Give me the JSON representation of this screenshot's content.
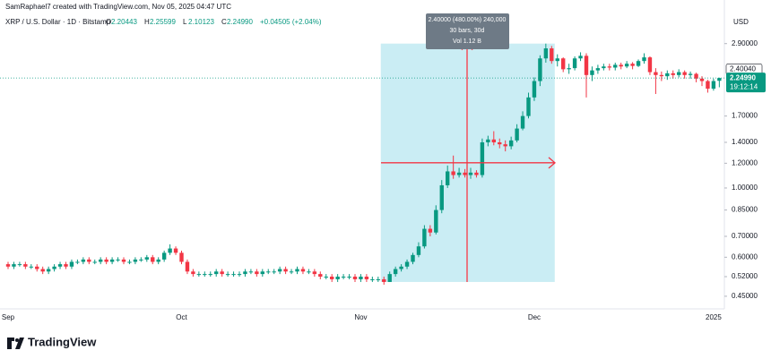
{
  "header": {
    "credit": "SamRaphael7 created with TradingView.com, Nov 05, 2025 04:47 UTC",
    "brand": "TradingView"
  },
  "chart_data": {
    "type": "candlestick",
    "title": "XRP / U.S. Dollar · 1D · Bitstamp",
    "ohlc_legend": [
      {
        "key": "O",
        "value": "2.20443"
      },
      {
        "key": "H",
        "value": "2.25599"
      },
      {
        "key": "L",
        "value": "2.10123"
      },
      {
        "key": "C",
        "value": "2.24990"
      }
    ],
    "change": "+0.04505 (+2.04%)",
    "currency": "USD",
    "up_color": "#089981",
    "down_color": "#f23645",
    "log_scale": true,
    "grid": false,
    "categories": [
      "Sep",
      null,
      null,
      null,
      null,
      null,
      null,
      null,
      null,
      null,
      null,
      null,
      null,
      null,
      null,
      null,
      null,
      null,
      null,
      null,
      null,
      null,
      null,
      null,
      null,
      null,
      null,
      null,
      null,
      null,
      "Oct",
      null,
      null,
      null,
      null,
      null,
      null,
      null,
      null,
      null,
      null,
      null,
      null,
      null,
      null,
      null,
      null,
      null,
      null,
      null,
      null,
      null,
      null,
      null,
      null,
      null,
      null,
      null,
      null,
      null,
      null,
      "Nov",
      null,
      null,
      null,
      null,
      null,
      null,
      null,
      null,
      null,
      null,
      null,
      null,
      null,
      null,
      null,
      null,
      null,
      null,
      null,
      null,
      null,
      null,
      null,
      null,
      null,
      null,
      null,
      null,
      null,
      "Dec",
      null,
      null,
      null,
      null,
      null,
      null,
      null,
      null,
      null,
      null,
      null,
      null,
      null,
      null,
      null,
      null,
      null,
      null,
      null,
      null,
      null,
      null,
      null,
      null,
      null,
      null,
      null,
      null,
      null,
      null,
      "2025",
      null
    ],
    "open": [
      0.57,
      0.56,
      0.57,
      0.57,
      0.56,
      0.56,
      0.55,
      0.54,
      0.55,
      0.56,
      0.57,
      0.56,
      0.58,
      0.58,
      0.59,
      0.58,
      0.58,
      0.59,
      0.58,
      0.59,
      0.59,
      0.58,
      0.58,
      0.59,
      0.59,
      0.6,
      0.58,
      0.59,
      0.62,
      0.64,
      0.62,
      0.58,
      0.54,
      0.53,
      0.53,
      0.53,
      0.53,
      0.54,
      0.53,
      0.53,
      0.53,
      0.53,
      0.54,
      0.54,
      0.53,
      0.54,
      0.54,
      0.54,
      0.55,
      0.54,
      0.54,
      0.55,
      0.54,
      0.54,
      0.53,
      0.52,
      0.52,
      0.51,
      0.52,
      0.52,
      0.52,
      0.51,
      0.52,
      0.51,
      0.51,
      0.51,
      0.5,
      0.53,
      0.55,
      0.56,
      0.58,
      0.61,
      0.65,
      0.74,
      0.72,
      0.85,
      1.02,
      1.13,
      1.1,
      1.12,
      1.1,
      1.12,
      1.1,
      1.4,
      1.43,
      1.4,
      1.38,
      1.36,
      1.42,
      1.55,
      1.7,
      1.95,
      2.2,
      2.6,
      2.8,
      2.55,
      2.6,
      2.4,
      2.42,
      2.6,
      2.65,
      2.3,
      2.38,
      2.42,
      2.45,
      2.43,
      2.48,
      2.45,
      2.5,
      2.46,
      2.55,
      2.62,
      2.35,
      2.3,
      2.28,
      2.33,
      2.3,
      2.35,
      2.3,
      2.32,
      2.24,
      2.2,
      2.08,
      2.20443
    ],
    "high": [
      0.58,
      0.58,
      0.58,
      0.58,
      0.57,
      0.57,
      0.56,
      0.56,
      0.57,
      0.58,
      0.58,
      0.59,
      0.59,
      0.6,
      0.6,
      0.59,
      0.6,
      0.6,
      0.6,
      0.6,
      0.6,
      0.59,
      0.6,
      0.6,
      0.61,
      0.61,
      0.6,
      0.63,
      0.66,
      0.65,
      0.63,
      0.59,
      0.55,
      0.54,
      0.54,
      0.54,
      0.55,
      0.55,
      0.54,
      0.54,
      0.54,
      0.55,
      0.55,
      0.55,
      0.55,
      0.55,
      0.55,
      0.56,
      0.56,
      0.55,
      0.56,
      0.56,
      0.55,
      0.55,
      0.54,
      0.53,
      0.53,
      0.53,
      0.53,
      0.53,
      0.53,
      0.53,
      0.53,
      0.52,
      0.52,
      0.52,
      0.54,
      0.56,
      0.57,
      0.59,
      0.62,
      0.67,
      0.76,
      0.76,
      0.88,
      1.06,
      1.18,
      1.27,
      1.16,
      1.15,
      1.16,
      1.14,
      1.44,
      1.47,
      1.52,
      1.44,
      1.42,
      1.46,
      1.6,
      1.76,
      2.02,
      2.26,
      2.66,
      2.9,
      2.85,
      2.68,
      2.62,
      2.5,
      2.64,
      2.72,
      2.7,
      2.45,
      2.48,
      2.5,
      2.5,
      2.52,
      2.52,
      2.55,
      2.53,
      2.58,
      2.7,
      2.64,
      2.42,
      2.36,
      2.38,
      2.38,
      2.4,
      2.38,
      2.36,
      2.34,
      2.28,
      2.22,
      2.24,
      2.25599
    ],
    "low": [
      0.55,
      0.55,
      0.56,
      0.55,
      0.55,
      0.54,
      0.53,
      0.53,
      0.54,
      0.55,
      0.55,
      0.55,
      0.57,
      0.57,
      0.57,
      0.57,
      0.57,
      0.57,
      0.57,
      0.58,
      0.57,
      0.57,
      0.57,
      0.58,
      0.58,
      0.57,
      0.57,
      0.58,
      0.61,
      0.61,
      0.57,
      0.53,
      0.52,
      0.52,
      0.52,
      0.52,
      0.52,
      0.52,
      0.52,
      0.52,
      0.52,
      0.52,
      0.53,
      0.52,
      0.52,
      0.53,
      0.53,
      0.53,
      0.53,
      0.53,
      0.53,
      0.53,
      0.53,
      0.52,
      0.51,
      0.51,
      0.5,
      0.5,
      0.51,
      0.51,
      0.5,
      0.5,
      0.5,
      0.5,
      0.5,
      0.49,
      0.5,
      0.52,
      0.54,
      0.55,
      0.57,
      0.6,
      0.64,
      0.7,
      0.71,
      0.83,
      1.0,
      1.07,
      1.08,
      1.08,
      1.07,
      1.08,
      1.08,
      1.36,
      1.37,
      1.34,
      1.31,
      1.33,
      1.4,
      1.53,
      1.67,
      1.9,
      2.12,
      2.52,
      2.5,
      2.45,
      2.35,
      2.32,
      2.38,
      2.55,
      1.95,
      2.2,
      2.32,
      2.38,
      2.38,
      2.38,
      2.4,
      2.42,
      2.4,
      2.44,
      2.5,
      2.3,
      2.0,
      2.2,
      2.22,
      2.24,
      2.26,
      2.24,
      2.24,
      2.18,
      2.12,
      2.02,
      2.05,
      2.10123
    ],
    "close": [
      0.56,
      0.57,
      0.57,
      0.56,
      0.56,
      0.55,
      0.54,
      0.55,
      0.56,
      0.57,
      0.56,
      0.58,
      0.58,
      0.59,
      0.58,
      0.58,
      0.59,
      0.58,
      0.59,
      0.59,
      0.58,
      0.58,
      0.59,
      0.59,
      0.6,
      0.58,
      0.59,
      0.62,
      0.64,
      0.62,
      0.58,
      0.54,
      0.53,
      0.53,
      0.53,
      0.53,
      0.54,
      0.53,
      0.53,
      0.53,
      0.53,
      0.54,
      0.54,
      0.53,
      0.54,
      0.54,
      0.54,
      0.55,
      0.54,
      0.54,
      0.55,
      0.54,
      0.54,
      0.53,
      0.52,
      0.52,
      0.51,
      0.52,
      0.52,
      0.52,
      0.51,
      0.52,
      0.51,
      0.51,
      0.51,
      0.5,
      0.53,
      0.55,
      0.56,
      0.58,
      0.61,
      0.65,
      0.74,
      0.72,
      0.85,
      1.02,
      1.13,
      1.1,
      1.12,
      1.1,
      1.12,
      1.1,
      1.4,
      1.43,
      1.4,
      1.38,
      1.36,
      1.42,
      1.55,
      1.7,
      1.95,
      2.2,
      2.6,
      2.8,
      2.55,
      2.6,
      2.4,
      2.42,
      2.6,
      2.65,
      2.3,
      2.38,
      2.42,
      2.45,
      2.43,
      2.48,
      2.45,
      2.5,
      2.46,
      2.55,
      2.62,
      2.35,
      2.3,
      2.28,
      2.33,
      2.3,
      2.35,
      2.3,
      2.32,
      2.24,
      2.2,
      2.08,
      2.2,
      2.2499
    ],
    "ylim": [
      0.41,
      4.0
    ],
    "yticks": [
      {
        "value": 0.45,
        "label": "0.45000"
      },
      {
        "value": 0.52,
        "label": "0.52000"
      },
      {
        "value": 0.6,
        "label": "0.60000"
      },
      {
        "value": 0.7,
        "label": "0.70000"
      },
      {
        "value": 0.85,
        "label": "0.85000"
      },
      {
        "value": 1.0,
        "label": "1.00000"
      },
      {
        "value": 1.2,
        "label": "1.20000"
      },
      {
        "value": 1.4,
        "label": "1.40000"
      },
      {
        "value": 1.7,
        "label": "1.70000"
      },
      {
        "value": 2.9,
        "label": "2.90000"
      }
    ],
    "price_tags": [
      {
        "value": 2.4004,
        "label": "2.40040"
      },
      {
        "value": 2.2499,
        "label": "2.24990",
        "countdown": "19:12:14"
      }
    ],
    "measure": {
      "from": 0.5,
      "to": 2.9,
      "label": "2.40000 (480.00%) 240,000",
      "bars": "30 bars, 30d",
      "volume": "Vol 1.12 B"
    }
  }
}
